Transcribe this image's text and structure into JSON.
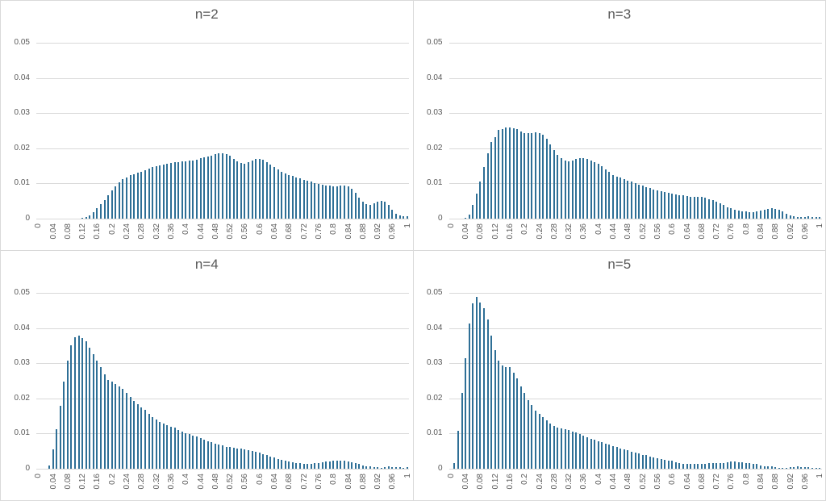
{
  "colors": {
    "bar": "#2e6f96",
    "grid": "#d9d9d9",
    "text": "#595959",
    "background": "#ffffff",
    "divider": "#d9d9d9"
  },
  "chart_data": [
    {
      "type": "bar",
      "title": "n=2",
      "xlabel": "",
      "ylabel": "",
      "ylim": [
        0,
        0.05
      ],
      "grid": true,
      "legend": false,
      "y_tick_labels": [
        "0.05",
        "0.04",
        "0.03",
        "0.02",
        "0.01",
        "0"
      ],
      "x_tick_labels": [
        "0",
        "0.04",
        "0.08",
        "0.12",
        "0.16",
        "0.2",
        "0.24",
        "0.28",
        "0.32",
        "0.36",
        "0.4",
        "0.44",
        "0.48",
        "0.52",
        "0.56",
        "0.6",
        "0.64",
        "0.68",
        "0.72",
        "0.76",
        "0.8",
        "0.84",
        "0.88",
        "0.92",
        "0.96",
        "1"
      ],
      "x_start": 0,
      "x_step": 0.01,
      "values": [
        0,
        0,
        0,
        0,
        0,
        0,
        0,
        0,
        0,
        0,
        0,
        0,
        0.0002,
        0.0004,
        0.0009,
        0.0018,
        0.003,
        0.0042,
        0.0053,
        0.0066,
        0.008,
        0.0092,
        0.0104,
        0.0112,
        0.0118,
        0.0123,
        0.0127,
        0.0131,
        0.0134,
        0.0138,
        0.0142,
        0.0146,
        0.0149,
        0.0152,
        0.0154,
        0.0157,
        0.0159,
        0.016,
        0.0161,
        0.0162,
        0.0163,
        0.0164,
        0.0166,
        0.0168,
        0.0171,
        0.0174,
        0.0177,
        0.018,
        0.0183,
        0.0185,
        0.0186,
        0.0183,
        0.0178,
        0.017,
        0.0162,
        0.0158,
        0.0157,
        0.016,
        0.0165,
        0.0169,
        0.017,
        0.0167,
        0.0161,
        0.0153,
        0.0146,
        0.014,
        0.0134,
        0.0129,
        0.0125,
        0.0122,
        0.0118,
        0.0114,
        0.0111,
        0.0108,
        0.0105,
        0.0102,
        0.0099,
        0.0097,
        0.0095,
        0.0093,
        0.0092,
        0.0092,
        0.0093,
        0.0093,
        0.0092,
        0.0086,
        0.0073,
        0.006,
        0.0048,
        0.0041,
        0.004,
        0.0043,
        0.0048,
        0.0051,
        0.0049,
        0.004,
        0.0026,
        0.0014,
        0.0009,
        0.0008,
        0.0008
      ]
    },
    {
      "type": "bar",
      "title": "n=3",
      "xlabel": "",
      "ylabel": "",
      "ylim": [
        0,
        0.05
      ],
      "grid": true,
      "legend": false,
      "y_tick_labels": [
        "0.05",
        "0.04",
        "0.03",
        "0.02",
        "0.01",
        "0"
      ],
      "x_tick_labels": [
        "0",
        "0.04",
        "0.08",
        "0.12",
        "0.16",
        "0.2",
        "0.24",
        "0.28",
        "0.32",
        "0.36",
        "0.4",
        "0.44",
        "0.48",
        "0.52",
        "0.56",
        "0.6",
        "0.64",
        "0.68",
        "0.72",
        "0.76",
        "0.8",
        "0.84",
        "0.88",
        "0.92",
        "0.96",
        "1"
      ],
      "x_start": 0,
      "x_step": 0.01,
      "values": [
        0,
        0,
        0,
        0,
        0.0002,
        0.0012,
        0.004,
        0.007,
        0.0105,
        0.0146,
        0.0185,
        0.0217,
        0.0232,
        0.0252,
        0.0255,
        0.0259,
        0.026,
        0.0258,
        0.0254,
        0.0247,
        0.0242,
        0.0242,
        0.0244,
        0.0245,
        0.0242,
        0.0238,
        0.0226,
        0.0212,
        0.0195,
        0.0182,
        0.0172,
        0.0165,
        0.0163,
        0.0165,
        0.0169,
        0.0171,
        0.0172,
        0.017,
        0.0166,
        0.0161,
        0.0155,
        0.0148,
        0.014,
        0.0132,
        0.0125,
        0.012,
        0.0116,
        0.0112,
        0.0108,
        0.0105,
        0.0101,
        0.0097,
        0.0093,
        0.009,
        0.0087,
        0.0083,
        0.008,
        0.0078,
        0.0076,
        0.0073,
        0.0071,
        0.0069,
        0.0067,
        0.0066,
        0.0064,
        0.0063,
        0.0062,
        0.0062,
        0.0061,
        0.0059,
        0.0056,
        0.0052,
        0.0048,
        0.0043,
        0.0038,
        0.0033,
        0.0029,
        0.0026,
        0.0023,
        0.0021,
        0.002,
        0.0019,
        0.0019,
        0.0021,
        0.0023,
        0.0026,
        0.0028,
        0.0029,
        0.0028,
        0.0026,
        0.0021,
        0.0014,
        0.001,
        0.0008,
        0.0005,
        0.0004,
        0.0005,
        0.0006,
        0.0005,
        0.0004,
        0.0004
      ]
    },
    {
      "type": "bar",
      "title": "n=4",
      "xlabel": "",
      "ylabel": "",
      "ylim": [
        0,
        0.05
      ],
      "grid": true,
      "legend": false,
      "y_tick_labels": [
        "0.05",
        "0.04",
        "0.03",
        "0.02",
        "0.01",
        "0"
      ],
      "x_tick_labels": [
        "0",
        "0.04",
        "0.08",
        "0.12",
        "0.16",
        "0.2",
        "0.24",
        "0.28",
        "0.32",
        "0.36",
        "0.4",
        "0.44",
        "0.48",
        "0.52",
        "0.56",
        "0.6",
        "0.64",
        "0.68",
        "0.72",
        "0.76",
        "0.8",
        "0.84",
        "0.88",
        "0.92",
        "0.96",
        "1"
      ],
      "x_start": 0,
      "x_step": 0.01,
      "values": [
        0,
        0,
        0,
        0.001,
        0.0055,
        0.0112,
        0.018,
        0.0247,
        0.0308,
        0.035,
        0.0375,
        0.0378,
        0.0371,
        0.0362,
        0.0345,
        0.0326,
        0.0307,
        0.0288,
        0.0268,
        0.0252,
        0.0247,
        0.024,
        0.0233,
        0.0227,
        0.0216,
        0.0205,
        0.0193,
        0.0183,
        0.0175,
        0.0167,
        0.0155,
        0.0146,
        0.0139,
        0.0132,
        0.0128,
        0.0123,
        0.012,
        0.0116,
        0.0111,
        0.0106,
        0.0101,
        0.0098,
        0.0095,
        0.0091,
        0.0088,
        0.0083,
        0.0079,
        0.0076,
        0.0072,
        0.0069,
        0.0066,
        0.0063,
        0.0061,
        0.0059,
        0.0058,
        0.0057,
        0.0056,
        0.0053,
        0.005,
        0.0048,
        0.0045,
        0.0042,
        0.0039,
        0.0035,
        0.0032,
        0.0028,
        0.0025,
        0.0022,
        0.002,
        0.0018,
        0.0016,
        0.0015,
        0.0014,
        0.0013,
        0.0014,
        0.0015,
        0.0016,
        0.0018,
        0.002,
        0.0021,
        0.0022,
        0.0022,
        0.0023,
        0.0022,
        0.002,
        0.0018,
        0.0016,
        0.0014,
        0.001,
        0.0008,
        0.0007,
        0.0005,
        0.0004,
        0.0003,
        0.0005,
        0.0006,
        0.0005,
        0.0005,
        0.0004,
        0.0003,
        0.0004
      ]
    },
    {
      "type": "bar",
      "title": "n=5",
      "xlabel": "",
      "ylabel": "",
      "ylim": [
        0,
        0.05
      ],
      "grid": true,
      "legend": false,
      "y_tick_labels": [
        "0.05",
        "0.04",
        "0.03",
        "0.02",
        "0.01",
        "0"
      ],
      "x_tick_labels": [
        "0",
        "0.04",
        "0.08",
        "0.12",
        "0.16",
        "0.2",
        "0.24",
        "0.28",
        "0.32",
        "0.36",
        "0.4",
        "0.44",
        "0.48",
        "0.52",
        "0.56",
        "0.6",
        "0.64",
        "0.68",
        "0.72",
        "0.76",
        "0.8",
        "0.84",
        "0.88",
        "0.92",
        "0.96",
        "1"
      ],
      "x_start": 0,
      "x_step": 0.01,
      "values": [
        0,
        0.0015,
        0.0108,
        0.0215,
        0.0315,
        0.0413,
        0.047,
        0.0488,
        0.0472,
        0.0456,
        0.0425,
        0.0378,
        0.0338,
        0.0308,
        0.0293,
        0.029,
        0.0289,
        0.0273,
        0.0257,
        0.0235,
        0.0216,
        0.0196,
        0.0181,
        0.0166,
        0.0155,
        0.0147,
        0.0138,
        0.0129,
        0.0122,
        0.0118,
        0.0115,
        0.0112,
        0.011,
        0.0106,
        0.0103,
        0.0098,
        0.0093,
        0.0089,
        0.0086,
        0.0082,
        0.0078,
        0.0075,
        0.0071,
        0.0068,
        0.0064,
        0.0061,
        0.0058,
        0.0055,
        0.0052,
        0.0049,
        0.0046,
        0.0043,
        0.004,
        0.0038,
        0.0035,
        0.0033,
        0.003,
        0.0028,
        0.0026,
        0.0024,
        0.0022,
        0.0018,
        0.0015,
        0.0014,
        0.0013,
        0.0013,
        0.0013,
        0.0013,
        0.0013,
        0.0014,
        0.0015,
        0.0015,
        0.0016,
        0.0016,
        0.0017,
        0.0018,
        0.002,
        0.002,
        0.0019,
        0.0018,
        0.0016,
        0.0015,
        0.0014,
        0.0013,
        0.001,
        0.0008,
        0.0007,
        0.0006,
        0.0004,
        0.0003,
        0.0002,
        0.0002,
        0.0004,
        0.0005,
        0.0006,
        0.0005,
        0.0005,
        0.0004,
        0.0003,
        0.0002,
        0.0003
      ]
    }
  ]
}
